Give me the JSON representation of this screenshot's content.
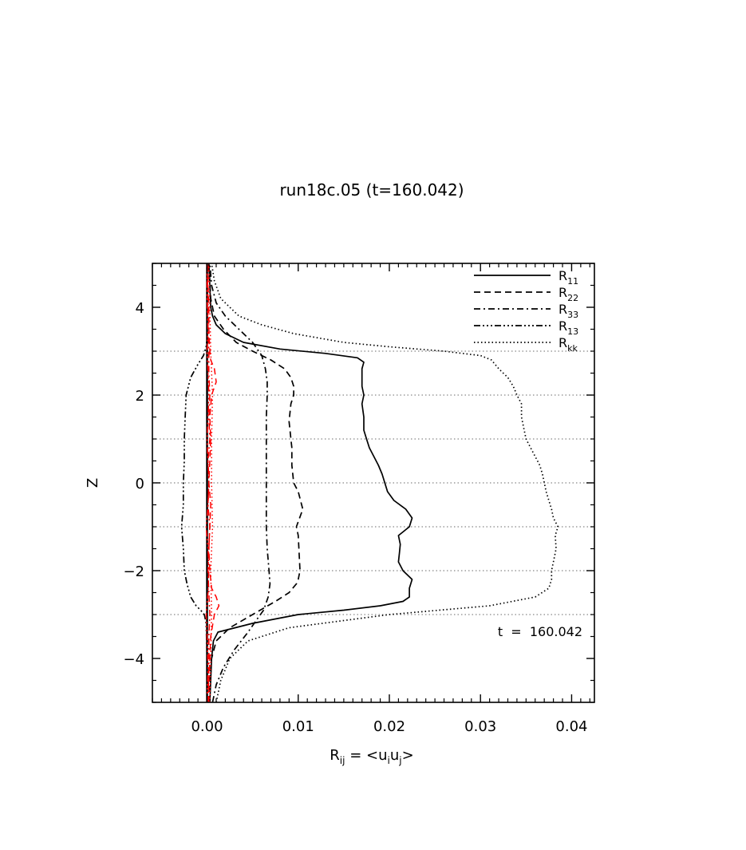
{
  "chart_data": {
    "type": "line",
    "title": "run18c.05 (t=160.042)",
    "xlabel": {
      "base": "R",
      "sub": "ij",
      "eq": " = ",
      "open": "<",
      "u1": "u",
      "s1": "i",
      "u2": "u",
      "s2": "j",
      "close": ">"
    },
    "ylabel": "Z",
    "xlim": [
      -0.006,
      0.0425
    ],
    "ylim": [
      -5,
      5
    ],
    "x_ticks": [
      0.0,
      0.01,
      0.02,
      0.03,
      0.04
    ],
    "x_tick_labels": [
      "0.00",
      "0.01",
      "0.02",
      "0.03",
      "0.04"
    ],
    "y_ticks": [
      -4,
      -2,
      0,
      2,
      4
    ],
    "y_tick_labels": [
      "−4",
      "−2",
      "0",
      "2",
      "4"
    ],
    "grid": "dotted horizontal lines at z = -3, -2, -1, 0, 1, 2, 3",
    "grid_y": [
      -3,
      -2,
      -1,
      0,
      1,
      2,
      3
    ],
    "annotation": "t  =  160.042",
    "legend_position": "top-right",
    "series": [
      {
        "name": "R11",
        "label_base": "R",
        "label_sub": "11",
        "color": "#000000",
        "dash": "solid",
        "z": [
          -5,
          -4.5,
          -4.0,
          -3.6,
          -3.4,
          -3.2,
          -3.0,
          -2.9,
          -2.8,
          -2.7,
          -2.6,
          -2.4,
          -2.2,
          -2.0,
          -1.8,
          -1.6,
          -1.4,
          -1.2,
          -1.0,
          -0.8,
          -0.6,
          -0.4,
          -0.2,
          0.0,
          0.2,
          0.4,
          0.6,
          0.8,
          1.0,
          1.2,
          1.5,
          1.8,
          2.0,
          2.2,
          2.4,
          2.6,
          2.75,
          2.85,
          2.95,
          3.05,
          3.2,
          3.4,
          3.6,
          3.8,
          4.0,
          4.5,
          5.0
        ],
        "x": [
          0.0003,
          0.0004,
          0.0005,
          0.0007,
          0.0012,
          0.005,
          0.01,
          0.015,
          0.019,
          0.0215,
          0.0222,
          0.0222,
          0.0225,
          0.0215,
          0.021,
          0.0211,
          0.0212,
          0.021,
          0.0222,
          0.0225,
          0.0218,
          0.0205,
          0.0198,
          0.0195,
          0.0192,
          0.0188,
          0.0183,
          0.0178,
          0.0175,
          0.0172,
          0.0172,
          0.017,
          0.0172,
          0.017,
          0.017,
          0.017,
          0.0172,
          0.0165,
          0.013,
          0.008,
          0.004,
          0.002,
          0.001,
          0.0006,
          0.0004,
          0.0003,
          0.0002
        ]
      },
      {
        "name": "R22",
        "label_base": "R",
        "label_sub": "22",
        "color": "#000000",
        "dash": "dashed",
        "z": [
          -5,
          -4.5,
          -4.0,
          -3.6,
          -3.3,
          -3.0,
          -2.7,
          -2.5,
          -2.3,
          -2.2,
          -2.0,
          -1.6,
          -1.2,
          -1.0,
          -0.6,
          -0.2,
          0.0,
          0.4,
          0.8,
          1.0,
          1.4,
          1.8,
          2.0,
          2.2,
          2.4,
          2.6,
          2.8,
          3.0,
          3.2,
          3.5,
          3.8,
          4.2,
          4.6,
          5.0
        ],
        "x": [
          0.0002,
          0.0003,
          0.0005,
          0.001,
          0.0025,
          0.005,
          0.0075,
          0.009,
          0.0098,
          0.01,
          0.0102,
          0.0101,
          0.01,
          0.0098,
          0.0105,
          0.01,
          0.0095,
          0.0093,
          0.0093,
          0.0092,
          0.009,
          0.0092,
          0.0095,
          0.0095,
          0.0092,
          0.0085,
          0.007,
          0.005,
          0.0032,
          0.0018,
          0.0008,
          0.0004,
          0.0003,
          0.0002
        ]
      },
      {
        "name": "R33",
        "label_base": "R",
        "label_sub": "33",
        "color": "#000000",
        "dash": "dashdot",
        "z": [
          -5,
          -4.6,
          -4.2,
          -3.8,
          -3.4,
          -3.1,
          -2.9,
          -2.6,
          -2.3,
          -2.0,
          -1.5,
          -1.0,
          -0.5,
          0.0,
          0.5,
          1.0,
          1.5,
          2.0,
          2.3,
          2.6,
          2.9,
          3.2,
          3.5,
          3.8,
          4.1,
          4.5,
          5.0
        ],
        "x": [
          0.0006,
          0.001,
          0.0018,
          0.003,
          0.0045,
          0.0055,
          0.0062,
          0.0067,
          0.0069,
          0.0068,
          0.0066,
          0.0065,
          0.0065,
          0.0065,
          0.0065,
          0.0065,
          0.0065,
          0.0066,
          0.0066,
          0.0064,
          0.006,
          0.005,
          0.0035,
          0.002,
          0.001,
          0.0005,
          0.0003
        ]
      },
      {
        "name": "R13",
        "label_base": "R",
        "label_sub": "13",
        "color": "#000000",
        "dash": "dashdotdotdot",
        "z": [
          -5,
          -4.0,
          -3.2,
          -3.0,
          -2.9,
          -2.8,
          -2.6,
          -2.3,
          -2.0,
          -1.5,
          -1.0,
          -0.5,
          0.0,
          0.5,
          1.0,
          1.5,
          2.0,
          2.4,
          2.7,
          2.9,
          3.1,
          3.3,
          4.0,
          5.0
        ],
        "x": [
          0.0,
          0.0,
          -0.0001,
          -0.0003,
          -0.0007,
          -0.0012,
          -0.0018,
          -0.0022,
          -0.0025,
          -0.0026,
          -0.0028,
          -0.0026,
          -0.0026,
          -0.0025,
          -0.0025,
          -0.0024,
          -0.0023,
          -0.0018,
          -0.001,
          -0.0004,
          -0.0001,
          0.0,
          0.0,
          0.0
        ]
      },
      {
        "name": "Rkk",
        "label_base": "R",
        "label_sub": "kk",
        "color": "#000000",
        "dash": "dotted",
        "z": [
          -5,
          -4.5,
          -4.0,
          -3.6,
          -3.3,
          -3.0,
          -2.8,
          -2.6,
          -2.4,
          -2.2,
          -2.0,
          -1.8,
          -1.5,
          -1.2,
          -1.0,
          -0.8,
          -0.6,
          -0.4,
          -0.2,
          0.0,
          0.2,
          0.4,
          0.6,
          0.8,
          1.0,
          1.2,
          1.5,
          1.8,
          2.0,
          2.2,
          2.4,
          2.6,
          2.8,
          2.9,
          3.0,
          3.1,
          3.2,
          3.4,
          3.6,
          3.8,
          4.2,
          4.6,
          5.0
        ],
        "x": [
          0.001,
          0.0015,
          0.0025,
          0.0045,
          0.009,
          0.02,
          0.031,
          0.036,
          0.0375,
          0.0378,
          0.0378,
          0.038,
          0.0383,
          0.0382,
          0.0385,
          0.038,
          0.0378,
          0.0375,
          0.0372,
          0.037,
          0.0368,
          0.0365,
          0.036,
          0.0355,
          0.035,
          0.0348,
          0.0345,
          0.0345,
          0.034,
          0.0336,
          0.033,
          0.032,
          0.0312,
          0.03,
          0.026,
          0.02,
          0.015,
          0.0095,
          0.006,
          0.0035,
          0.0015,
          0.0008,
          0.0005
        ]
      },
      {
        "color": "#ff0000",
        "dash": "dashed",
        "z": [
          -5,
          -4.5,
          -4.0,
          -3.5,
          -3.0,
          -2.8,
          -2.6,
          -2.4,
          -2.0,
          -1.5,
          -1.0,
          -0.5,
          0.0,
          0.5,
          1.0,
          1.5,
          2.0,
          2.3,
          2.6,
          2.8,
          3.0,
          3.5,
          4.0,
          4.5,
          5.0
        ],
        "x": [
          0.0002,
          0.0002,
          0.0003,
          0.0004,
          0.0008,
          0.0013,
          0.001,
          0.0005,
          0.0003,
          0.0002,
          0.0003,
          0.0004,
          0.0002,
          0.0003,
          0.0004,
          0.0003,
          0.0005,
          0.001,
          0.0008,
          0.0004,
          0.0003,
          0.0002,
          0.0002,
          0.0001,
          0.0001
        ]
      },
      {
        "color": "#ff0000",
        "dash": "dashdot",
        "z": [
          -5,
          -4.2,
          -3.5,
          -3.0,
          -2.5,
          -2.0,
          -1.5,
          -1.0,
          -0.5,
          0.0,
          0.5,
          1.0,
          1.5,
          2.0,
          2.5,
          3.0,
          3.5,
          4.2,
          5.0
        ],
        "x": [
          0.0001,
          0.0002,
          0.0002,
          0.0003,
          0.0002,
          0.0001,
          0.0002,
          0.0003,
          0.0001,
          0.0002,
          0.0001,
          0.0003,
          0.0002,
          0.0003,
          0.0002,
          0.0002,
          0.0001,
          0.0001,
          0.0
        ]
      },
      {
        "color": "#ff0000",
        "dash": "dashdotdotdot",
        "z": [
          -5,
          -4.2,
          -3.5,
          -3.0,
          -2.5,
          -2.0,
          -1.5,
          -1.0,
          -0.5,
          0.0,
          0.5,
          1.0,
          1.5,
          2.0,
          2.5,
          3.0,
          3.5,
          4.2,
          5.0
        ],
        "x": [
          0.0,
          0.0001,
          0.0,
          -0.0001,
          0.0001,
          0.0002,
          0.0001,
          -0.0001,
          0.0001,
          0.0002,
          0.0001,
          0.0,
          0.0001,
          0.0002,
          0.0001,
          0.0,
          0.0001,
          0.0,
          0.0
        ]
      },
      {
        "color": "#ff0000",
        "dash": "dotted",
        "z": [
          -5,
          -4.0,
          -3.0,
          -2.0,
          -1.0,
          0.0,
          1.0,
          2.0,
          3.0,
          4.0,
          5.0
        ],
        "x": [
          0.0003,
          0.0004,
          0.0005,
          0.0004,
          0.0006,
          0.0005,
          0.0005,
          0.0006,
          0.0004,
          0.0003,
          0.0002
        ]
      }
    ]
  }
}
